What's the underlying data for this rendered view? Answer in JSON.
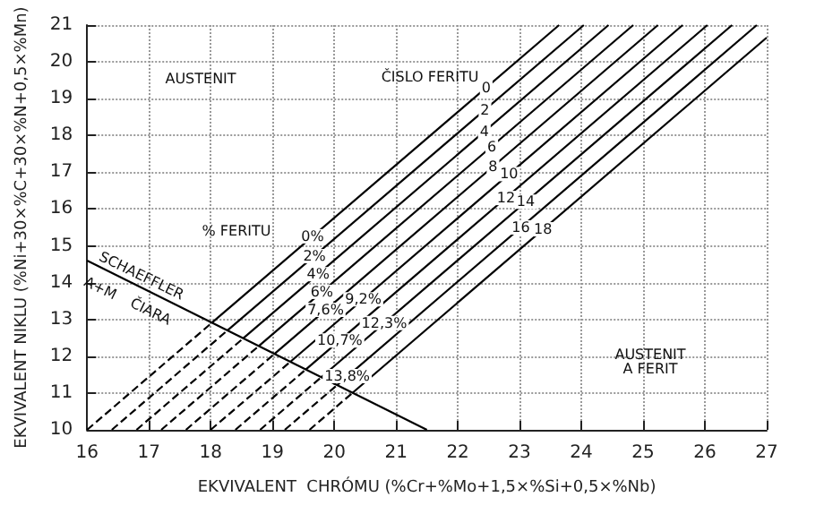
{
  "chart_data": {
    "type": "line",
    "xlabel": "EKVIVALENT  CHRÓMU (%Cr+%Mo+1,5×%Si+0,5×%Nb)",
    "ylabel": "EKVIVALENT NIKLU (%Ni+30×%C+30×%N+0,5×%Mn)",
    "xlim": [
      16,
      27
    ],
    "xticks": [
      16,
      17,
      18,
      19,
      20,
      21,
      22,
      23,
      24,
      25,
      26,
      27
    ],
    "ylim": [
      10,
      21
    ],
    "yticks": [
      10,
      11,
      12,
      13,
      14,
      15,
      16,
      17,
      18,
      19,
      20,
      21
    ],
    "grid": true,
    "marker": "none",
    "series": [
      {
        "color": "#000000",
        "line_style": "solid",
        "x": [
          16,
          21.5
        ],
        "values": [
          14.6,
          10
        ]
      },
      {
        "color": "#000000",
        "line_style": "dashed",
        "x": [
          16,
          18.02
        ],
        "values": [
          10,
          12.91
        ]
      },
      {
        "color": "#000000",
        "line_style": "dashed",
        "x": [
          16.4,
          18.27
        ],
        "values": [
          10,
          12.7
        ]
      },
      {
        "color": "#000000",
        "line_style": "dashed",
        "x": [
          16.8,
          18.53
        ],
        "values": [
          10,
          12.49
        ]
      },
      {
        "color": "#000000",
        "line_style": "dashed",
        "x": [
          17.2,
          18.78
        ],
        "values": [
          10,
          12.28
        ]
      },
      {
        "color": "#000000",
        "line_style": "dashed",
        "x": [
          17.6,
          19.03
        ],
        "values": [
          10,
          12.06
        ]
      },
      {
        "color": "#000000",
        "line_style": "dashed",
        "x": [
          18,
          19.29
        ],
        "values": [
          10,
          11.85
        ]
      },
      {
        "color": "#000000",
        "line_style": "dashed",
        "x": [
          18.4,
          19.54
        ],
        "values": [
          10,
          11.64
        ]
      },
      {
        "color": "#000000",
        "line_style": "dashed",
        "x": [
          18.8,
          19.79
        ],
        "values": [
          10,
          11.43
        ]
      },
      {
        "color": "#000000",
        "line_style": "dashed",
        "x": [
          19.2,
          20.05
        ],
        "values": [
          10,
          11.22
        ]
      },
      {
        "color": "#000000",
        "line_style": "dashed",
        "x": [
          19.6,
          20.3
        ],
        "values": [
          10,
          11.01
        ]
      },
      {
        "color": "#000000",
        "line_style": "solid",
        "x": [
          18.02,
          23.64
        ],
        "values": [
          12.91,
          21
        ]
      },
      {
        "color": "#000000",
        "line_style": "solid",
        "x": [
          18.27,
          24.04
        ],
        "values": [
          12.7,
          21
        ]
      },
      {
        "color": "#000000",
        "line_style": "solid",
        "x": [
          18.53,
          24.44
        ],
        "values": [
          12.49,
          21
        ]
      },
      {
        "color": "#000000",
        "line_style": "solid",
        "x": [
          18.78,
          24.84
        ],
        "values": [
          12.28,
          21
        ]
      },
      {
        "color": "#000000",
        "line_style": "solid",
        "x": [
          19.03,
          25.24
        ],
        "values": [
          12.06,
          21
        ]
      },
      {
        "color": "#000000",
        "line_style": "solid",
        "x": [
          19.29,
          25.64
        ],
        "values": [
          11.85,
          21
        ]
      },
      {
        "color": "#000000",
        "line_style": "solid",
        "x": [
          19.54,
          26.04
        ],
        "values": [
          11.64,
          21
        ]
      },
      {
        "color": "#000000",
        "line_style": "solid",
        "x": [
          19.79,
          26.44
        ],
        "values": [
          11.43,
          21
        ]
      },
      {
        "color": "#000000",
        "line_style": "solid",
        "x": [
          20.05,
          26.84
        ],
        "values": [
          11.22,
          21
        ]
      },
      {
        "color": "#000000",
        "line_style": "solid",
        "x": [
          20.3,
          27
        ],
        "values": [
          11.01,
          20.66
        ]
      }
    ],
    "annotations": [
      "AUSTENIT",
      "ČISLO FERITU",
      "% FERITU",
      "SCHAEFFLER",
      "A+M",
      "ČIARA",
      "AUSTENIT\nA FERIT",
      {
        "text": "0",
        "x": 22.46,
        "y": 19.3
      },
      {
        "text": "2",
        "x": 22.44,
        "y": 18.7
      },
      {
        "text": "4",
        "x": 22.43,
        "y": 18.1
      },
      {
        "text": "6",
        "x": 22.55,
        "y": 17.7
      },
      {
        "text": "8",
        "x": 22.57,
        "y": 17.15
      },
      {
        "text": "10",
        "x": 22.83,
        "y": 16.95
      },
      {
        "text": "12",
        "x": 22.78,
        "y": 16.3
      },
      {
        "text": "14",
        "x": 23.1,
        "y": 16.2
      },
      {
        "text": "16",
        "x": 23.02,
        "y": 15.5
      },
      {
        "text": "18",
        "x": 23.38,
        "y": 15.45
      },
      {
        "text": "0%",
        "x": 19.65,
        "y": 15.26
      },
      {
        "text": "2%",
        "x": 19.68,
        "y": 14.72
      },
      {
        "text": "4%",
        "x": 19.74,
        "y": 14.23
      },
      {
        "text": "6%",
        "x": 19.8,
        "y": 13.75
      },
      {
        "text": "7,6%",
        "x": 19.86,
        "y": 13.26
      },
      {
        "text": "9,2%",
        "x": 20.47,
        "y": 13.55
      },
      {
        "text": "10,7%",
        "x": 20.09,
        "y": 12.43
      },
      {
        "text": "12,3%",
        "x": 20.81,
        "y": 12.9
      },
      {
        "text": "13,8%",
        "x": 20.21,
        "y": 11.46
      }
    ]
  }
}
